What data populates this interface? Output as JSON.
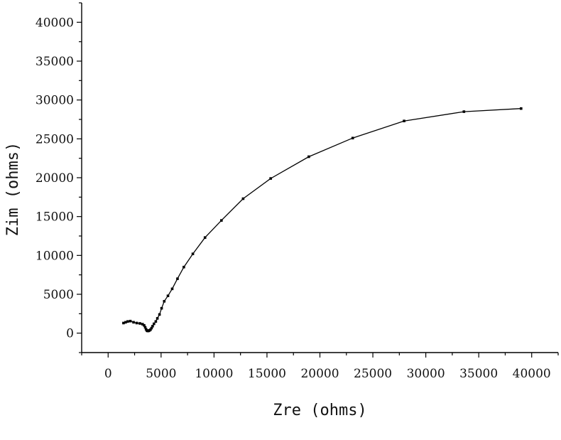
{
  "chart_data": {
    "type": "line",
    "xlabel": "Zre (ohms)",
    "ylabel": "Zim (ohms)",
    "xlim": [
      -2500,
      42500
    ],
    "ylim": [
      -2500,
      42500
    ],
    "x_ticks": [
      0,
      5000,
      10000,
      15000,
      20000,
      25000,
      30000,
      35000,
      40000
    ],
    "y_ticks": [
      0,
      5000,
      10000,
      15000,
      20000,
      25000,
      30000,
      35000,
      40000
    ],
    "x_tick_labels": [
      "0",
      "5000",
      "10000",
      "15000",
      "20000",
      "25000",
      "30000",
      "35000",
      "40000"
    ],
    "y_tick_labels": [
      "0",
      "5000",
      "10000",
      "15000",
      "20000",
      "25000",
      "30000",
      "35000",
      "40000"
    ],
    "grid": false,
    "series": [
      {
        "color": "#000000",
        "x": [
          1450,
          1650,
          1850,
          2100,
          2400,
          2700,
          3000,
          3250,
          3400,
          3500,
          3580,
          3650,
          3700,
          3760,
          3820,
          3900,
          4000,
          4100,
          4200,
          4330,
          4500,
          4650,
          4850,
          5050,
          5300,
          5650,
          6050,
          6550,
          7150,
          8000,
          9150,
          10700,
          12750,
          15350,
          18950,
          23100,
          27950,
          33600,
          39000
        ],
        "y": [
          1300,
          1400,
          1500,
          1550,
          1400,
          1300,
          1250,
          1150,
          1000,
          750,
          500,
          350,
          300,
          280,
          300,
          350,
          450,
          650,
          900,
          1200,
          1500,
          1900,
          2400,
          3200,
          4100,
          4800,
          5700,
          7000,
          8500,
          10200,
          12300,
          14500,
          17300,
          19900,
          22700,
          25100,
          27300,
          28500,
          28900
        ]
      }
    ]
  }
}
